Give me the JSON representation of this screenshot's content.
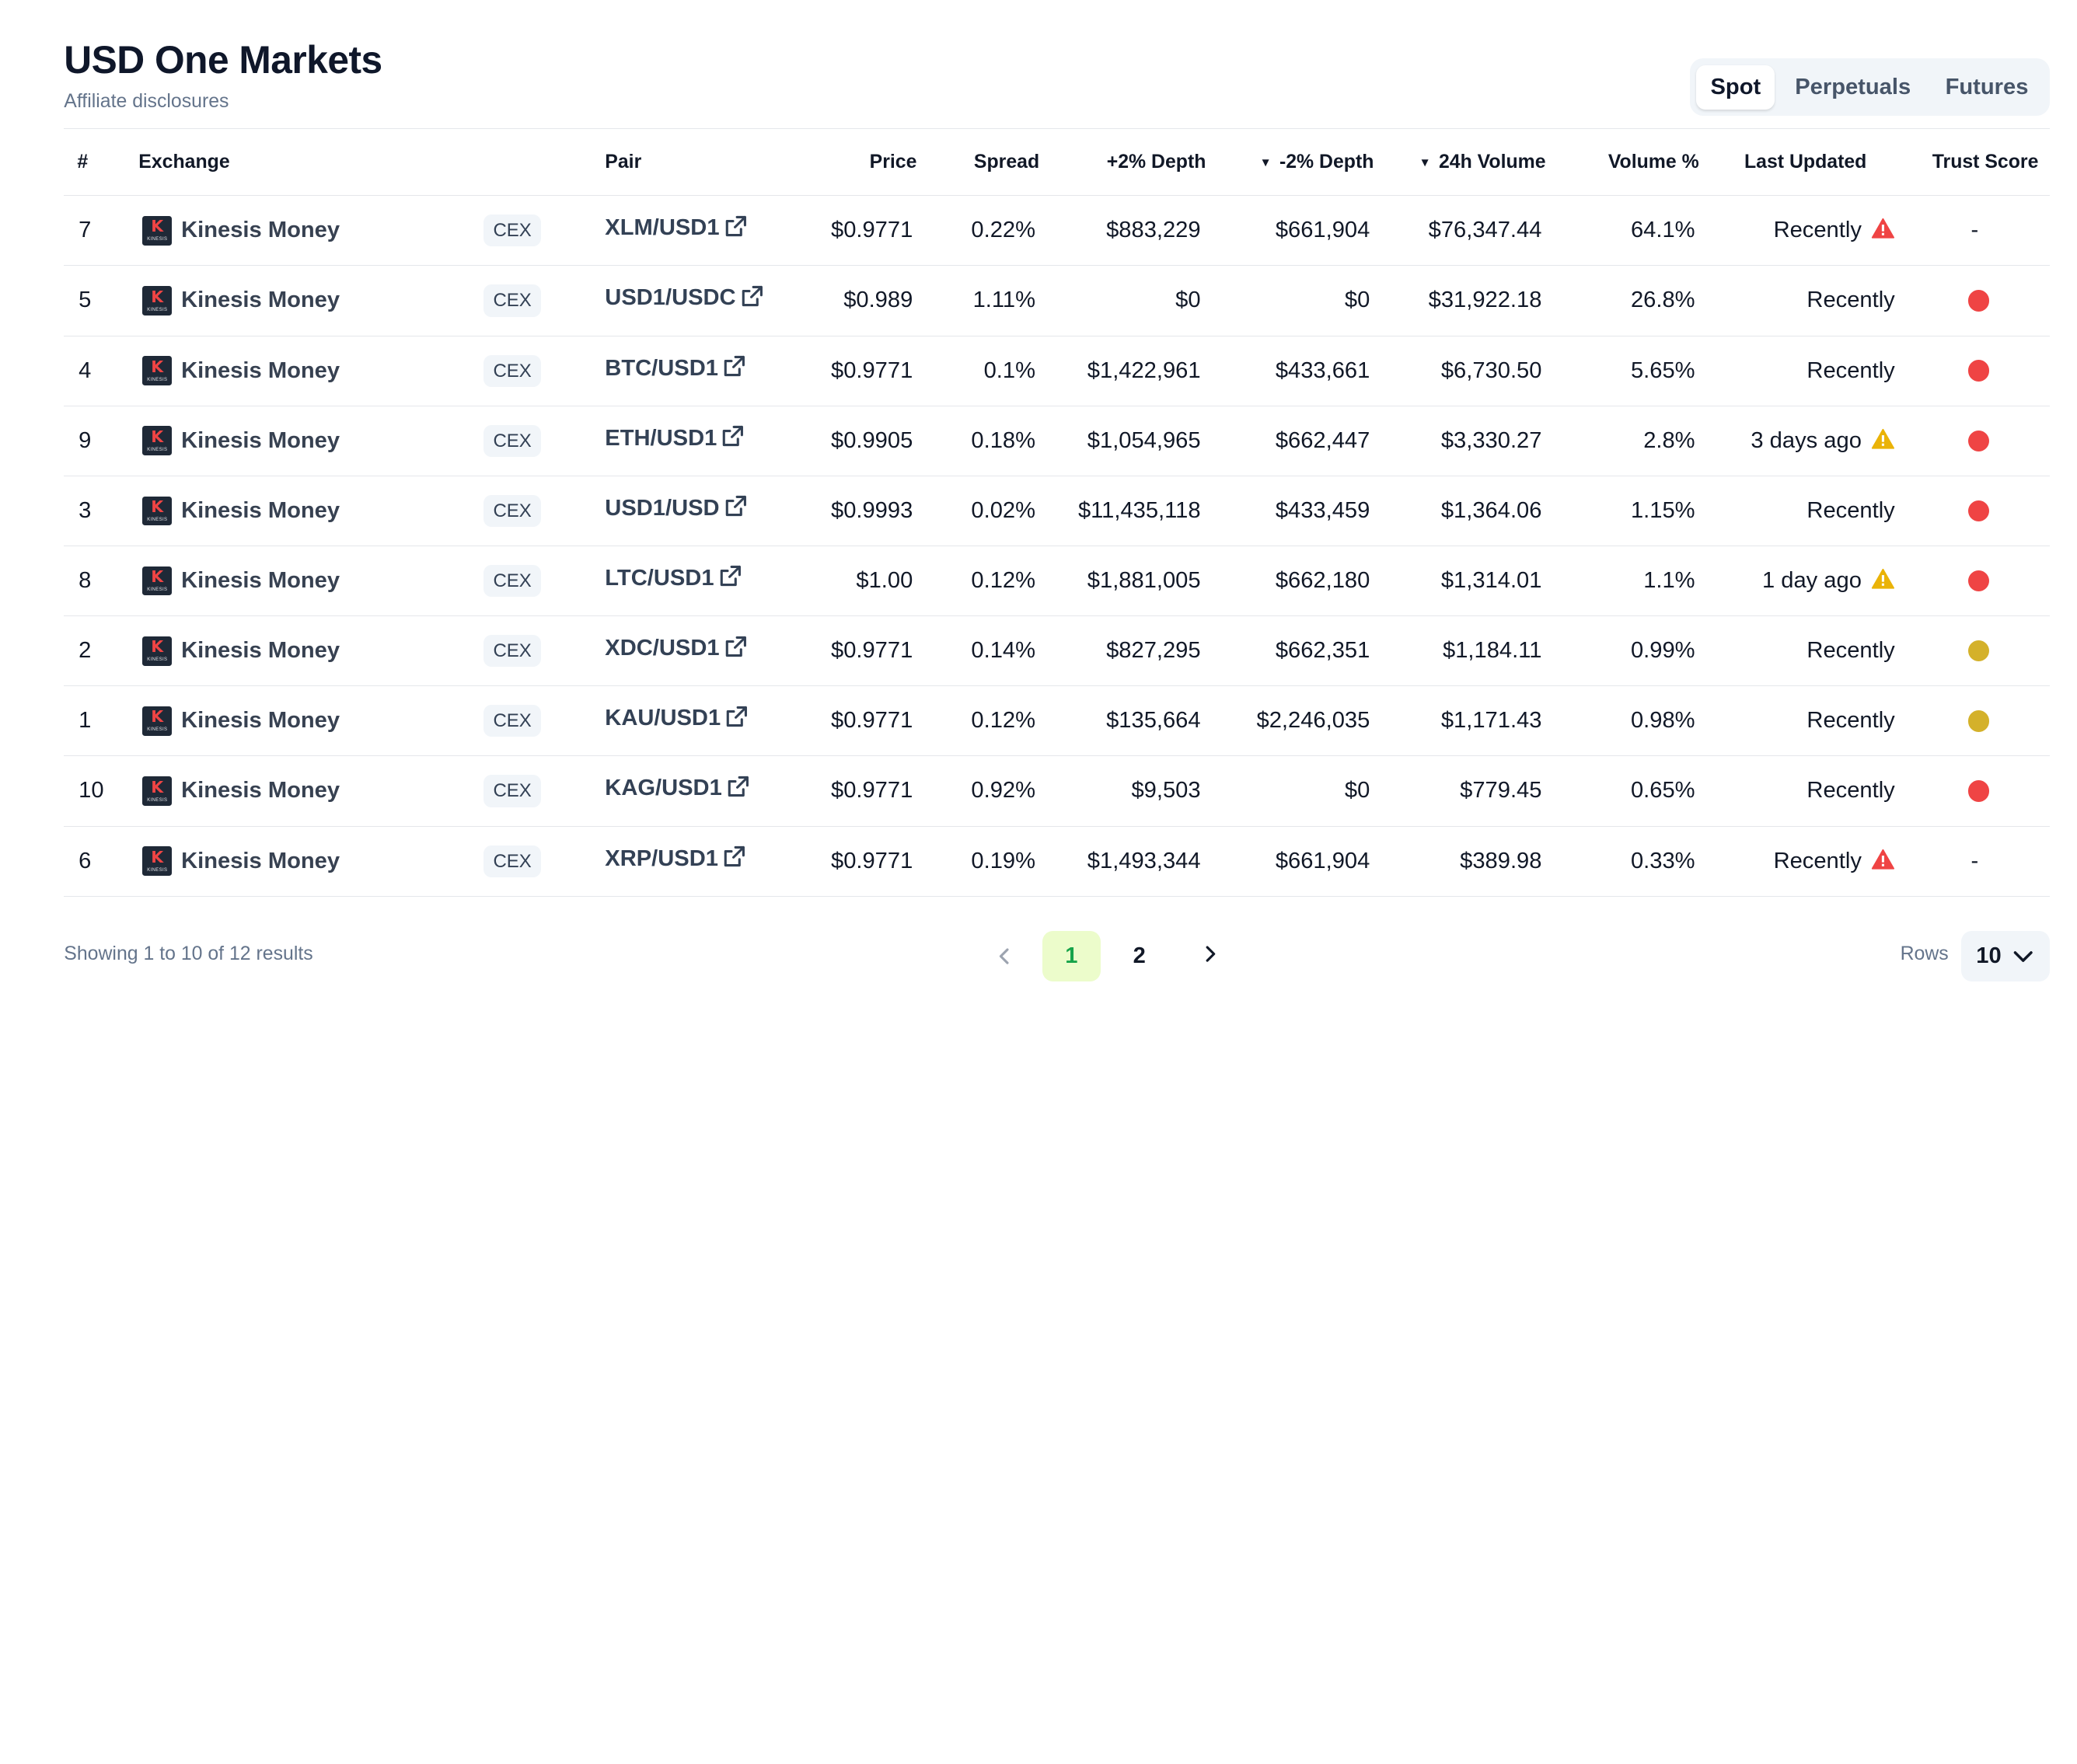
{
  "header": {
    "title": "USD One Markets",
    "subtitle": "Affiliate disclosures"
  },
  "tabs": [
    {
      "label": "Spot",
      "active": true
    },
    {
      "label": "Perpetuals",
      "active": false
    },
    {
      "label": "Futures",
      "active": false
    }
  ],
  "columns": {
    "num": "#",
    "exchange": "Exchange",
    "pair": "Pair",
    "price": "Price",
    "spread": "Spread",
    "depth_plus": "+2% Depth",
    "depth_minus": "-2% Depth",
    "volume": "24h Volume",
    "volume_pct": "Volume %",
    "last_updated": "Last Updated",
    "trust_score": "Trust Score"
  },
  "sort_indicator": "▼",
  "colors": {
    "trust_red": "#ef4444",
    "trust_yellow": "#d4b12a",
    "warn_red": "#ef4444",
    "warn_yellow": "#eab308",
    "accent_green": "#16a34a"
  },
  "rows": [
    {
      "num": "7",
      "exchange": "Kinesis Money",
      "type": "CEX",
      "pair": "XLM/USD1",
      "price": "$0.9771",
      "spread": "0.22%",
      "depth_plus": "$883,229",
      "depth_minus": "$661,904",
      "volume": "$76,347.44",
      "volume_pct": "64.1%",
      "last_updated": "Recently",
      "warning": "red",
      "trust": "-"
    },
    {
      "num": "5",
      "exchange": "Kinesis Money",
      "type": "CEX",
      "pair": "USD1/USDC",
      "price": "$0.989",
      "spread": "1.11%",
      "depth_plus": "$0",
      "depth_minus": "$0",
      "volume": "$31,922.18",
      "volume_pct": "26.8%",
      "last_updated": "Recently",
      "warning": "",
      "trust": "red"
    },
    {
      "num": "4",
      "exchange": "Kinesis Money",
      "type": "CEX",
      "pair": "BTC/USD1",
      "price": "$0.9771",
      "spread": "0.1%",
      "depth_plus": "$1,422,961",
      "depth_minus": "$433,661",
      "volume": "$6,730.50",
      "volume_pct": "5.65%",
      "last_updated": "Recently",
      "warning": "",
      "trust": "red"
    },
    {
      "num": "9",
      "exchange": "Kinesis Money",
      "type": "CEX",
      "pair": "ETH/USD1",
      "price": "$0.9905",
      "spread": "0.18%",
      "depth_plus": "$1,054,965",
      "depth_minus": "$662,447",
      "volume": "$3,330.27",
      "volume_pct": "2.8%",
      "last_updated": "3 days ago",
      "warning": "yellow",
      "trust": "red"
    },
    {
      "num": "3",
      "exchange": "Kinesis Money",
      "type": "CEX",
      "pair": "USD1/USD",
      "price": "$0.9993",
      "spread": "0.02%",
      "depth_plus": "$11,435,118",
      "depth_minus": "$433,459",
      "volume": "$1,364.06",
      "volume_pct": "1.15%",
      "last_updated": "Recently",
      "warning": "",
      "trust": "red"
    },
    {
      "num": "8",
      "exchange": "Kinesis Money",
      "type": "CEX",
      "pair": "LTC/USD1",
      "price": "$1.00",
      "spread": "0.12%",
      "depth_plus": "$1,881,005",
      "depth_minus": "$662,180",
      "volume": "$1,314.01",
      "volume_pct": "1.1%",
      "last_updated": "1 day ago",
      "warning": "yellow",
      "trust": "red"
    },
    {
      "num": "2",
      "exchange": "Kinesis Money",
      "type": "CEX",
      "pair": "XDC/USD1",
      "price": "$0.9771",
      "spread": "0.14%",
      "depth_plus": "$827,295",
      "depth_minus": "$662,351",
      "volume": "$1,184.11",
      "volume_pct": "0.99%",
      "last_updated": "Recently",
      "warning": "",
      "trust": "yellow"
    },
    {
      "num": "1",
      "exchange": "Kinesis Money",
      "type": "CEX",
      "pair": "KAU/USD1",
      "price": "$0.9771",
      "spread": "0.12%",
      "depth_plus": "$135,664",
      "depth_minus": "$2,246,035",
      "volume": "$1,171.43",
      "volume_pct": "0.98%",
      "last_updated": "Recently",
      "warning": "",
      "trust": "yellow"
    },
    {
      "num": "10",
      "exchange": "Kinesis Money",
      "type": "CEX",
      "pair": "KAG/USD1",
      "price": "$0.9771",
      "spread": "0.92%",
      "depth_plus": "$9,503",
      "depth_minus": "$0",
      "volume": "$779.45",
      "volume_pct": "0.65%",
      "last_updated": "Recently",
      "warning": "",
      "trust": "red"
    },
    {
      "num": "6",
      "exchange": "Kinesis Money",
      "type": "CEX",
      "pair": "XRP/USD1",
      "price": "$0.9771",
      "spread": "0.19%",
      "depth_plus": "$1,493,344",
      "depth_minus": "$661,904",
      "volume": "$389.98",
      "volume_pct": "0.33%",
      "last_updated": "Recently",
      "warning": "red",
      "trust": "-"
    }
  ],
  "footer": {
    "showing": "Showing 1 to 10 of 12 results",
    "pages": [
      "1",
      "2"
    ],
    "current_page": "1",
    "rows_label": "Rows",
    "rows_value": "10"
  },
  "icons": {
    "exchange_logo": "kinesis-logo",
    "pair_link": "external-link-icon",
    "warning": "warning-triangle-icon",
    "prev": "chevron-left-icon",
    "next": "chevron-right-icon",
    "rows_dropdown": "chevron-down-icon"
  }
}
